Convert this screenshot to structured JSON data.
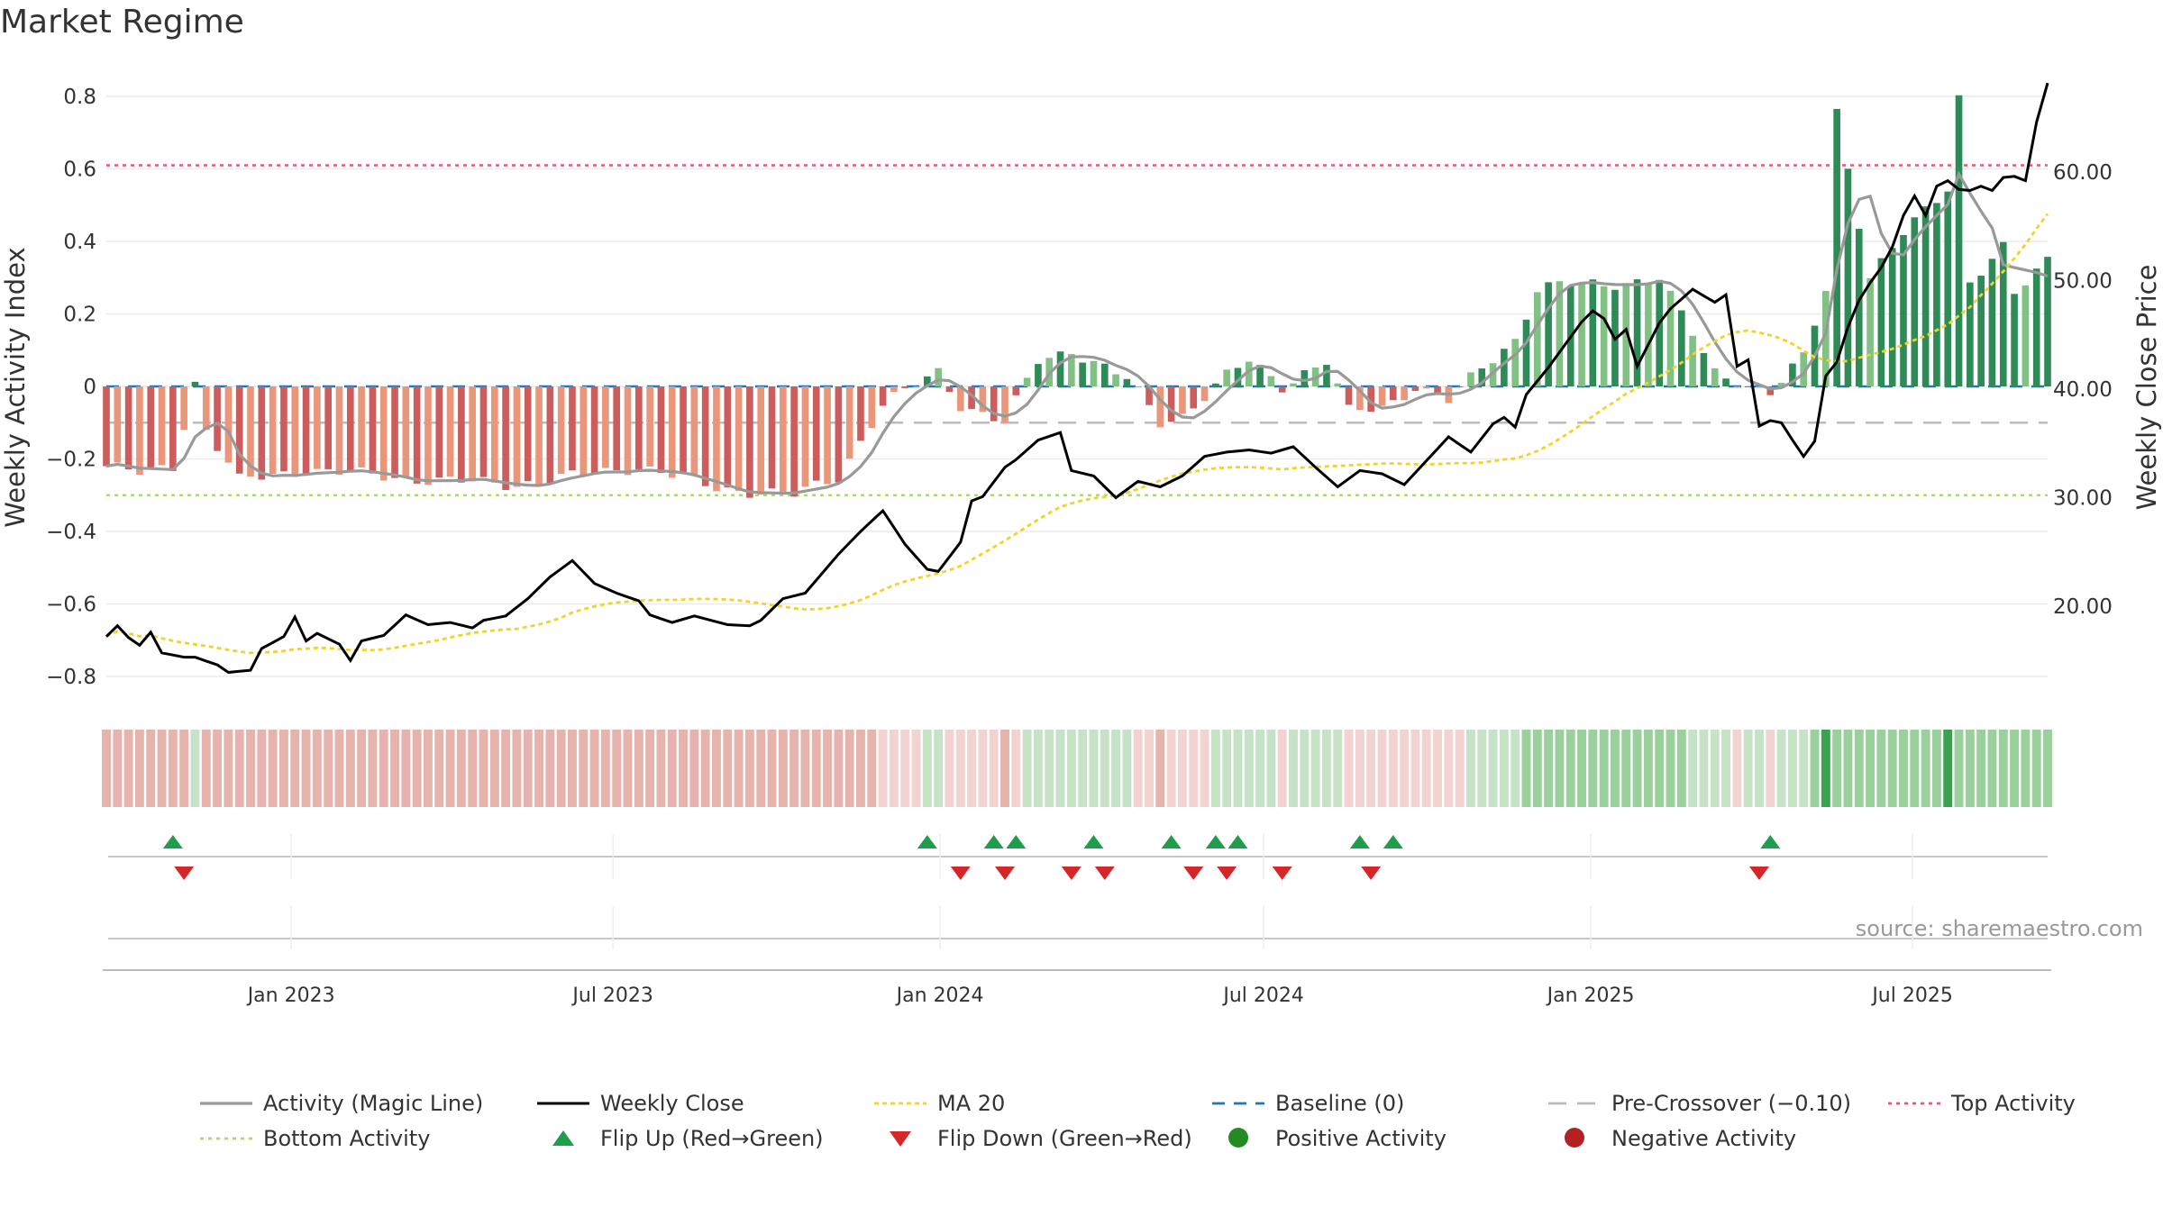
{
  "chart_data": {
    "type": "bar",
    "title": "Market Regime",
    "y_left_label": "Weekly Activity Index",
    "y_right_label": "Weekly Close Price",
    "y_left_range": [
      -0.88,
      0.8
    ],
    "y_left_ticks": [
      "0.8",
      "0.6",
      "0.4",
      "0.2",
      "0",
      "−0.2",
      "−0.4",
      "−0.6",
      "−0.8"
    ],
    "y_right_range": [
      10,
      67
    ],
    "y_right_ticks": [
      "60.00",
      "50.00",
      "40.00",
      "30.00",
      "20.00"
    ],
    "x_tick_labels": [
      "Jan 2023",
      "Jul 2023",
      "Jan 2024",
      "Jul 2024",
      "Jan 2025",
      "Jul 2025"
    ],
    "date_range": [
      "2022-09-19",
      "2025-09-15"
    ],
    "reference_lines": {
      "baseline": 0,
      "pre_crossover": -0.1,
      "top_activity": 0.61,
      "bottom_activity": -0.3
    },
    "source_text": "source: sharemaestro.com",
    "colors": {
      "pos_strong": "#2e8b57",
      "pos_light": "#82c184",
      "neg_strong": "#cd5c5c",
      "neg_light": "#e9967a",
      "close": "#000000",
      "magic": "#999999",
      "ma20": "#f2d32a",
      "baseline": "#1f77b4",
      "pre": "#bbbbbb",
      "top": "#e8577a",
      "bottom": "#a8dc6e",
      "flip_up": "#1e9e4a",
      "flip_down": "#d62728"
    },
    "activity_anchors": [
      [
        0,
        -0.22
      ],
      [
        3,
        -0.24
      ],
      [
        6,
        -0.22
      ],
      [
        8,
        0.01
      ],
      [
        9,
        -0.12
      ],
      [
        12,
        -0.26
      ],
      [
        18,
        -0.23
      ],
      [
        30,
        -0.26
      ],
      [
        37,
        -0.27
      ],
      [
        44,
        -0.24
      ],
      [
        48,
        -0.22
      ],
      [
        55,
        -0.28
      ],
      [
        62,
        -0.3
      ],
      [
        66,
        -0.25
      ],
      [
        70,
        -0.05
      ],
      [
        75,
        0.04
      ],
      [
        77,
        -0.05
      ],
      [
        81,
        -0.1
      ],
      [
        84,
        0.07
      ],
      [
        87,
        0.1
      ],
      [
        92,
        0.02
      ],
      [
        95,
        -0.1
      ],
      [
        97,
        -0.08
      ],
      [
        101,
        0.03
      ],
      [
        103,
        0.07
      ],
      [
        106,
        0.0
      ],
      [
        108,
        0.04
      ],
      [
        110,
        0.07
      ],
      [
        112,
        -0.07
      ],
      [
        115,
        -0.06
      ],
      [
        118,
        0.0
      ],
      [
        121,
        -0.04
      ],
      [
        124,
        0.05
      ],
      [
        127,
        0.13
      ],
      [
        129,
        0.27
      ],
      [
        131,
        0.28
      ],
      [
        135,
        0.28
      ],
      [
        140,
        0.3
      ],
      [
        145,
        0.04
      ],
      [
        150,
        -0.02
      ],
      [
        153,
        0.08
      ],
      [
        155,
        0.27
      ],
      [
        156,
        0.76
      ],
      [
        159,
        0.3
      ],
      [
        162,
        0.42
      ],
      [
        166,
        0.55
      ],
      [
        167,
        0.8
      ],
      [
        168,
        0.29
      ],
      [
        171,
        0.38
      ],
      [
        172,
        0.25
      ],
      [
        175,
        0.35
      ]
    ],
    "close_anchors": [
      [
        0,
        17.2
      ],
      [
        1,
        18.2
      ],
      [
        2,
        17.1
      ],
      [
        3,
        16.4
      ],
      [
        4,
        17.6
      ],
      [
        5,
        15.7
      ],
      [
        7,
        15.3
      ],
      [
        8,
        15.3
      ],
      [
        10,
        14.6
      ],
      [
        11,
        13.9
      ],
      [
        13,
        14.1
      ],
      [
        14,
        16.1
      ],
      [
        16,
        17.2
      ],
      [
        17,
        19.0
      ],
      [
        18,
        16.8
      ],
      [
        19,
        17.5
      ],
      [
        21,
        16.5
      ],
      [
        22,
        15.0
      ],
      [
        23,
        16.8
      ],
      [
        25,
        17.3
      ],
      [
        27,
        19.2
      ],
      [
        29,
        18.3
      ],
      [
        31,
        18.5
      ],
      [
        33,
        18.0
      ],
      [
        34,
        18.7
      ],
      [
        36,
        19.1
      ],
      [
        38,
        20.7
      ],
      [
        40,
        22.7
      ],
      [
        42,
        24.2
      ],
      [
        44,
        22.1
      ],
      [
        46,
        21.2
      ],
      [
        48,
        20.5
      ],
      [
        49,
        19.2
      ],
      [
        51,
        18.5
      ],
      [
        53,
        19.1
      ],
      [
        56,
        18.3
      ],
      [
        58,
        18.2
      ],
      [
        59,
        18.7
      ],
      [
        61,
        20.7
      ],
      [
        63,
        21.2
      ],
      [
        66,
        24.8
      ],
      [
        68,
        26.9
      ],
      [
        70,
        28.8
      ],
      [
        72,
        25.7
      ],
      [
        74,
        23.4
      ],
      [
        75,
        23.2
      ],
      [
        77,
        25.9
      ],
      [
        78,
        29.7
      ],
      [
        79,
        30.1
      ],
      [
        81,
        32.8
      ],
      [
        82,
        33.5
      ],
      [
        84,
        35.3
      ],
      [
        86,
        36.0
      ],
      [
        87,
        32.5
      ],
      [
        89,
        32.0
      ],
      [
        91,
        30.0
      ],
      [
        93,
        31.5
      ],
      [
        95,
        31.0
      ],
      [
        97,
        32.0
      ],
      [
        99,
        33.8
      ],
      [
        101,
        34.2
      ],
      [
        103,
        34.4
      ],
      [
        105,
        34.1
      ],
      [
        107,
        34.7
      ],
      [
        109,
        32.8
      ],
      [
        111,
        31.0
      ],
      [
        113,
        32.5
      ],
      [
        115,
        32.2
      ],
      [
        117,
        31.2
      ],
      [
        119,
        33.4
      ],
      [
        121,
        35.6
      ],
      [
        123,
        34.2
      ],
      [
        125,
        36.8
      ],
      [
        126,
        37.4
      ],
      [
        127,
        36.5
      ],
      [
        128,
        39.5
      ],
      [
        130,
        42.0
      ],
      [
        131,
        43.4
      ],
      [
        133,
        46.2
      ],
      [
        134,
        47.2
      ],
      [
        135,
        46.5
      ],
      [
        136,
        44.6
      ],
      [
        137,
        45.5
      ],
      [
        138,
        42.1
      ],
      [
        140,
        46.1
      ],
      [
        141,
        47.4
      ],
      [
        143,
        49.2
      ],
      [
        145,
        48.0
      ],
      [
        146,
        48.7
      ],
      [
        147,
        42.1
      ],
      [
        148,
        42.7
      ],
      [
        149,
        36.6
      ],
      [
        150,
        37.1
      ],
      [
        151,
        36.9
      ],
      [
        152,
        35.3
      ],
      [
        153,
        33.8
      ],
      [
        154,
        35.2
      ],
      [
        155,
        41.2
      ],
      [
        156,
        42.5
      ],
      [
        157,
        45.7
      ],
      [
        158,
        48.2
      ],
      [
        159,
        49.8
      ],
      [
        160,
        51.2
      ],
      [
        161,
        53.1
      ],
      [
        162,
        56.0
      ],
      [
        163,
        57.8
      ],
      [
        164,
        56.0
      ],
      [
        165,
        58.7
      ],
      [
        166,
        59.2
      ],
      [
        167,
        58.4
      ],
      [
        168,
        58.3
      ],
      [
        169,
        58.7
      ],
      [
        170,
        58.3
      ],
      [
        171,
        59.5
      ],
      [
        172,
        59.6
      ],
      [
        173,
        59.2
      ],
      [
        174,
        64.6
      ],
      [
        175,
        68.2
      ]
    ],
    "flip_up_weeks": [
      6,
      74,
      80,
      82,
      89,
      96,
      100,
      102,
      113,
      116,
      150
    ],
    "flip_down_weeks": [
      7,
      77,
      81,
      87,
      90,
      98,
      101,
      106,
      114,
      149
    ],
    "heat_strong_weeks": [
      155,
      166
    ],
    "legend": [
      {
        "label": "Activity (Magic Line)",
        "style": "line-magic"
      },
      {
        "label": "Weekly Close",
        "style": "line-close"
      },
      {
        "label": "MA 20",
        "style": "line-ma"
      },
      {
        "label": "Baseline (0)",
        "style": "line-base"
      },
      {
        "label": "Pre-Crossover (−0.10)",
        "style": "line-pre"
      },
      {
        "label": "Top Activity",
        "style": "line-top"
      },
      {
        "label": "Bottom Activity",
        "style": "line-bottom"
      },
      {
        "label": "Flip Up (Red→Green)",
        "style": "tri-up"
      },
      {
        "label": "Flip Down (Green→Red)",
        "style": "tri-down"
      },
      {
        "label": "Positive Activity",
        "style": "dot-pos"
      },
      {
        "label": "Negative Activity",
        "style": "dot-neg"
      }
    ]
  }
}
